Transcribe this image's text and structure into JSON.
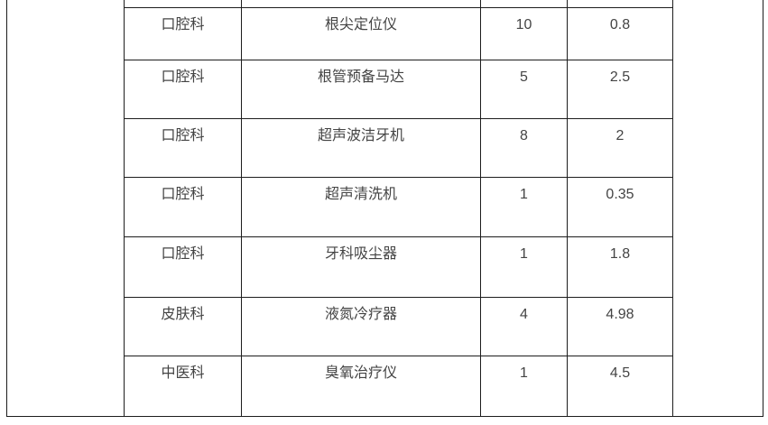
{
  "document": {
    "background_color": "#ffffff",
    "table_border_color": "#1d1d1d",
    "table_text_color": "#444444"
  },
  "table": {
    "columns": [
      "department",
      "equipment_name",
      "quantity",
      "value"
    ],
    "rows": [
      {
        "department": "口腔科",
        "equipment": "根尖定位仪",
        "quantity": "10",
        "value": "0.8"
      },
      {
        "department": "口腔科",
        "equipment": "根管预备马达",
        "quantity": "5",
        "value": "2.5"
      },
      {
        "department": "口腔科",
        "equipment": "超声波洁牙机",
        "quantity": "8",
        "value": "2"
      },
      {
        "department": "口腔科",
        "equipment": "超声清洗机",
        "quantity": "1",
        "value": "0.35"
      },
      {
        "department": "口腔科",
        "equipment": "牙科吸尘器",
        "quantity": "1",
        "value": "1.8"
      },
      {
        "department": "皮肤科",
        "equipment": "液氮冷疗器",
        "quantity": "4",
        "value": "4.98"
      },
      {
        "department": "中医科",
        "equipment": "臭氧治疗仪",
        "quantity": "1",
        "value": "4.5"
      }
    ]
  }
}
